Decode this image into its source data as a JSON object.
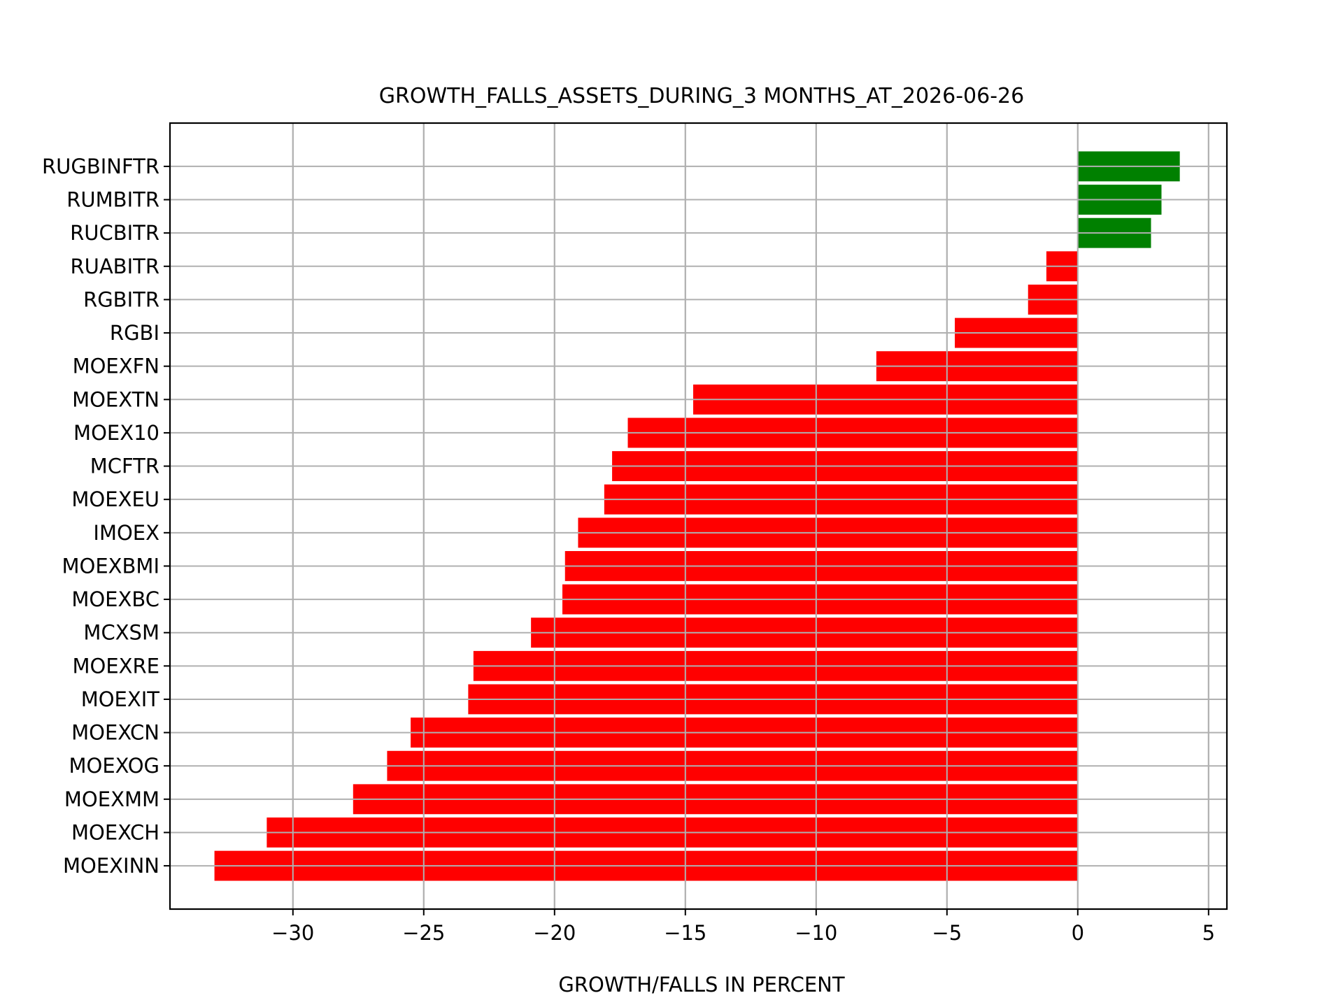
{
  "chart_data": {
    "type": "bar",
    "orientation": "horizontal",
    "title": "GROWTH_FALLS_ASSETS_DURING_3 MONTHS_AT_2026-06-26",
    "xlabel": "GROWTH/FALLS IN PERCENT",
    "ylabel": "",
    "xlim": [
      -34.7,
      5.7
    ],
    "xticks": [
      -30,
      -25,
      -20,
      -15,
      -10,
      -5,
      0,
      5
    ],
    "xtick_labels": [
      "−30",
      "−25",
      "−20",
      "−15",
      "−10",
      "−5",
      "0",
      "5"
    ],
    "grid": true,
    "positive_color": "#008000",
    "negative_color": "#ff0000",
    "categories": [
      "MOEXINN",
      "MOEXCH",
      "MOEXMM",
      "MOEXOG",
      "MOEXCN",
      "MOEXIT",
      "MOEXRE",
      "MCXSM",
      "MOEXBC",
      "MOEXBMI",
      "IMOEX",
      "MOEXEU",
      "MCFTR",
      "MOEX10",
      "MOEXTN",
      "MOEXFN",
      "RGBI",
      "RGBITR",
      "RUABITR",
      "RUCBITR",
      "RUMBITR",
      "RUGBINFTR"
    ],
    "values": [
      -33.0,
      -31.0,
      -27.7,
      -26.4,
      -25.5,
      -23.3,
      -23.1,
      -20.9,
      -19.7,
      -19.6,
      -19.1,
      -18.1,
      -17.8,
      -17.2,
      -14.7,
      -7.7,
      -4.7,
      -1.9,
      -1.2,
      2.8,
      3.2,
      3.9
    ]
  }
}
